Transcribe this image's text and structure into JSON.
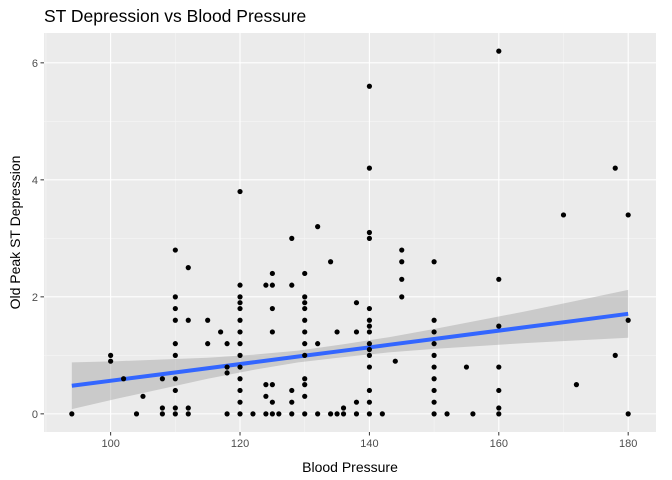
{
  "chart_data": {
    "type": "scatter",
    "title": "ST Depression vs Blood Pressure",
    "xlabel": "Blood Pressure",
    "ylabel": "Old Peak ST Depression",
    "xlim": [
      89.7,
      184.3
    ],
    "ylim": [
      -0.31,
      6.51
    ],
    "x_ticks": [
      100,
      120,
      140,
      160,
      180
    ],
    "x_tick_labels": [
      "100",
      "120",
      "140",
      "160",
      "180"
    ],
    "y_ticks": [
      0,
      2,
      4,
      6
    ],
    "y_tick_labels": [
      "0",
      "2",
      "4",
      "6"
    ],
    "grid": true,
    "legend": "none",
    "colors": {
      "panel_background": "#ebebeb",
      "grid_major": "#ffffff",
      "grid_minor": "#f5f5f5",
      "points": "#000000",
      "trend_line": "#3366ff",
      "confidence_band": "#999999"
    },
    "points": [
      [
        94,
        0
      ],
      [
        100,
        1.0
      ],
      [
        100,
        0.9
      ],
      [
        102,
        0.6
      ],
      [
        104,
        0
      ],
      [
        105,
        0.3
      ],
      [
        108,
        0.1
      ],
      [
        108,
        0
      ],
      [
        108,
        0.6
      ],
      [
        110,
        2.8
      ],
      [
        110,
        2.0
      ],
      [
        110,
        1.8
      ],
      [
        110,
        1.6
      ],
      [
        110,
        1.2
      ],
      [
        110,
        1.0
      ],
      [
        110,
        0.6
      ],
      [
        110,
        0.4
      ],
      [
        110,
        0.1
      ],
      [
        110,
        0
      ],
      [
        112,
        2.5
      ],
      [
        112,
        1.6
      ],
      [
        112,
        0.1
      ],
      [
        112,
        0
      ],
      [
        115,
        1.6
      ],
      [
        115,
        1.2
      ],
      [
        117,
        1.4
      ],
      [
        118,
        0.7
      ],
      [
        118,
        1.2
      ],
      [
        118,
        0.8
      ],
      [
        118,
        0
      ],
      [
        120,
        3.8
      ],
      [
        120,
        2.2
      ],
      [
        120,
        2.0
      ],
      [
        120,
        1.9
      ],
      [
        120,
        1.8
      ],
      [
        120,
        1.6
      ],
      [
        120,
        1.4
      ],
      [
        120,
        1.2
      ],
      [
        120,
        1.0
      ],
      [
        120,
        0.8
      ],
      [
        120,
        0.6
      ],
      [
        120,
        0.4
      ],
      [
        120,
        0.2
      ],
      [
        120,
        0
      ],
      [
        122,
        0
      ],
      [
        124,
        2.2
      ],
      [
        124,
        0.5
      ],
      [
        124,
        0.3
      ],
      [
        124,
        0
      ],
      [
        125,
        2.4
      ],
      [
        125,
        2.2
      ],
      [
        125,
        1.8
      ],
      [
        125,
        1.4
      ],
      [
        125,
        0.5
      ],
      [
        125,
        0.2
      ],
      [
        125,
        0
      ],
      [
        126,
        0
      ],
      [
        128,
        3.0
      ],
      [
        128,
        2.2
      ],
      [
        128,
        0.4
      ],
      [
        128,
        0.2
      ],
      [
        128,
        0
      ],
      [
        130,
        2.4
      ],
      [
        130,
        2.0
      ],
      [
        130,
        1.9
      ],
      [
        130,
        1.8
      ],
      [
        130,
        1.6
      ],
      [
        130,
        1.4
      ],
      [
        130,
        1.2
      ],
      [
        130,
        1.0
      ],
      [
        130,
        0.6
      ],
      [
        130,
        0.5
      ],
      [
        130,
        0.3
      ],
      [
        130,
        0
      ],
      [
        132,
        3.2
      ],
      [
        132,
        1.2
      ],
      [
        132,
        0
      ],
      [
        134,
        2.6
      ],
      [
        134,
        0
      ],
      [
        135,
        1.4
      ],
      [
        135,
        0
      ],
      [
        136,
        0.1
      ],
      [
        136,
        0
      ],
      [
        138,
        1.9
      ],
      [
        138,
        1.4
      ],
      [
        138,
        0.2
      ],
      [
        138,
        0
      ],
      [
        140,
        5.6
      ],
      [
        140,
        4.2
      ],
      [
        140,
        3.1
      ],
      [
        140,
        3.0
      ],
      [
        140,
        1.8
      ],
      [
        140,
        1.6
      ],
      [
        140,
        1.5
      ],
      [
        140,
        1.4
      ],
      [
        140,
        1.2
      ],
      [
        140,
        1.1
      ],
      [
        140,
        1.0
      ],
      [
        140,
        0.8
      ],
      [
        140,
        0.4
      ],
      [
        140,
        0.2
      ],
      [
        140,
        0
      ],
      [
        142,
        0
      ],
      [
        144,
        0.9
      ],
      [
        145,
        2.8
      ],
      [
        145,
        2.6
      ],
      [
        145,
        2.3
      ],
      [
        145,
        2.0
      ],
      [
        150,
        2.6
      ],
      [
        150,
        1.6
      ],
      [
        150,
        1.4
      ],
      [
        150,
        1.2
      ],
      [
        150,
        1.0
      ],
      [
        150,
        0.8
      ],
      [
        150,
        0.6
      ],
      [
        150,
        0.4
      ],
      [
        150,
        0.2
      ],
      [
        150,
        0
      ],
      [
        152,
        0
      ],
      [
        155,
        0.8
      ],
      [
        156,
        0
      ],
      [
        160,
        6.2
      ],
      [
        160,
        2.3
      ],
      [
        160,
        1.5
      ],
      [
        160,
        0.8
      ],
      [
        160,
        0.4
      ],
      [
        160,
        0.1
      ],
      [
        160,
        0
      ],
      [
        170,
        3.4
      ],
      [
        172,
        0.5
      ],
      [
        178,
        4.2
      ],
      [
        178,
        1.0
      ],
      [
        180,
        3.4
      ],
      [
        180,
        1.6
      ],
      [
        180,
        0
      ]
    ],
    "trend": {
      "method": "lm",
      "x": [
        94,
        101,
        108,
        115,
        122,
        129,
        136,
        143,
        150,
        157,
        164,
        171,
        180
      ],
      "y": [
        0.48,
        0.58,
        0.68,
        0.78,
        0.88,
        0.98,
        1.08,
        1.18,
        1.28,
        1.38,
        1.48,
        1.58,
        1.71
      ],
      "lower": [
        0.08,
        0.26,
        0.43,
        0.6,
        0.75,
        0.88,
        0.97,
        1.05,
        1.11,
        1.16,
        1.21,
        1.25,
        1.3
      ],
      "upper": [
        0.88,
        0.9,
        0.93,
        0.96,
        1.01,
        1.08,
        1.19,
        1.31,
        1.45,
        1.6,
        1.75,
        1.91,
        2.12
      ]
    }
  }
}
